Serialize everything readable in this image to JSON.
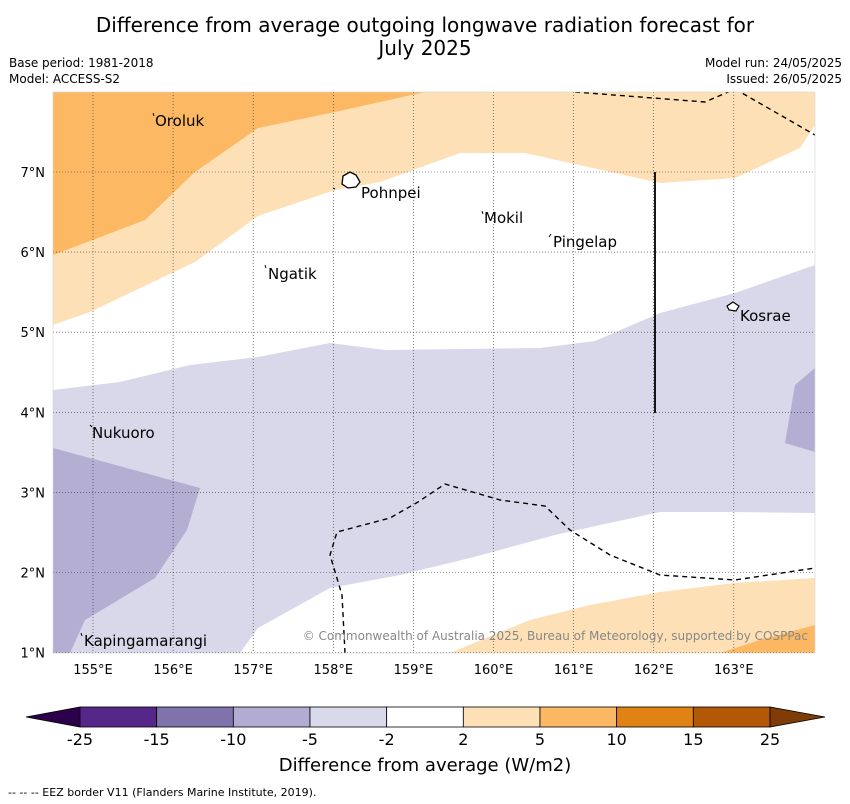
{
  "header": {
    "title_line1": "Difference from average outgoing longwave radiation forecast for",
    "title_line2": "July 2025",
    "base_period": "Base period: 1981-2018",
    "model": "Model: ACCESS-S2",
    "model_run": "Model run: 24/05/2025",
    "issued": "Issued: 26/05/2025"
  },
  "map": {
    "lon_ticks": [
      "155°E",
      "156°E",
      "157°E",
      "158°E",
      "159°E",
      "160°E",
      "161°E",
      "162°E",
      "163°E"
    ],
    "lat_ticks": [
      "7°N",
      "6°N",
      "5°N",
      "4°N",
      "3°N",
      "2°N",
      "1°N"
    ],
    "places": [
      {
        "name": "Oroluk"
      },
      {
        "name": "Pohnpei"
      },
      {
        "name": "Mokil"
      },
      {
        "name": "Pingelap"
      },
      {
        "name": "Ngatik"
      },
      {
        "name": "Kosrae"
      },
      {
        "name": "Nukuoro"
      },
      {
        "name": "Kapingamarangi"
      }
    ],
    "copyright": "© Commonwealth of Australia 2025, Bureau of Meteorology, supported by COSPPac",
    "colors": {
      "lt5": "#d8d8ea",
      "lt10": "#b3aed2",
      "gt2": "#fde0b5",
      "gt5": "#fdb863",
      "gt10": "#f0a050"
    }
  },
  "colorbar": {
    "labels": [
      "-25",
      "-15",
      "-10",
      "-5",
      "-2",
      "2",
      "5",
      "10",
      "15",
      "25"
    ],
    "colors": [
      "#2d004b",
      "#542788",
      "#8073ac",
      "#b2abd2",
      "#d8daeb",
      "#ffffff",
      "#fee0b6",
      "#fdb863",
      "#e08214",
      "#b35806",
      "#7f3b08"
    ],
    "title": "Difference from average (W/m2)"
  },
  "footnote": "--  --  -- EEZ border V11 (Flanders Marine Institute, 2019)."
}
